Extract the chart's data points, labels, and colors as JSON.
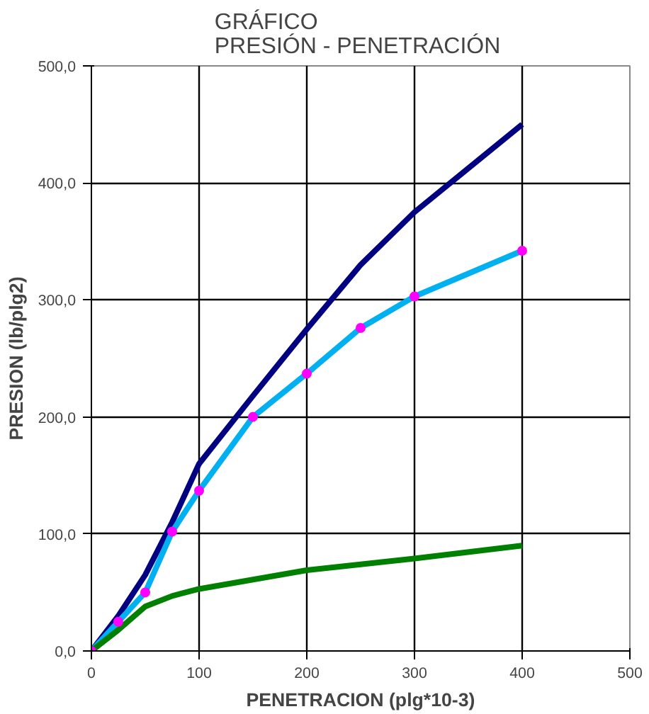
{
  "chart_data": {
    "type": "line",
    "title": "GRÁFICO\nPRESIÓN  - PENETRACIÓN",
    "xlabel": "PENETRACION (plg*10-3)",
    "ylabel": "PRESION (lb/plg2)",
    "xlim": [
      0,
      500
    ],
    "xticks": [
      0,
      100,
      200,
      300,
      400,
      500
    ],
    "ylim": [
      0,
      500
    ],
    "yticks": [
      {
        "value": 0,
        "label": "0,0"
      },
      {
        "value": 100,
        "label": "100,0"
      },
      {
        "value": 200,
        "label": "200,0"
      },
      {
        "value": 300,
        "label": "300,0"
      },
      {
        "value": 400,
        "label": "400,0"
      },
      {
        "value": 500,
        "label": "500,0"
      }
    ],
    "grid": true,
    "series": [
      {
        "color": "#000080",
        "x": [
          0,
          25,
          50,
          75,
          100,
          150,
          200,
          250,
          300,
          400
        ],
        "values": [
          0,
          30,
          65,
          110,
          160,
          218,
          275,
          330,
          375,
          450
        ]
      },
      {
        "color": "#00b0f0",
        "x": [
          0,
          25,
          50,
          75,
          100,
          150,
          200,
          250,
          300,
          400
        ],
        "values": [
          0,
          25,
          50,
          102,
          137,
          200,
          237,
          276,
          303,
          342
        ]
      },
      {
        "color": "#008000",
        "x": [
          0,
          25,
          50,
          75,
          100,
          150,
          200,
          250,
          300,
          400
        ],
        "values": [
          0,
          18,
          38,
          47,
          53,
          61,
          69,
          74,
          79,
          90
        ]
      },
      {
        "type": "scatter",
        "marker": "circle",
        "color": "#ff00ff",
        "x": [
          0,
          25,
          50,
          75,
          100,
          150,
          200,
          250,
          300,
          400
        ],
        "values": [
          0,
          25,
          50,
          102,
          137,
          200,
          237,
          276,
          303,
          342
        ]
      }
    ]
  }
}
